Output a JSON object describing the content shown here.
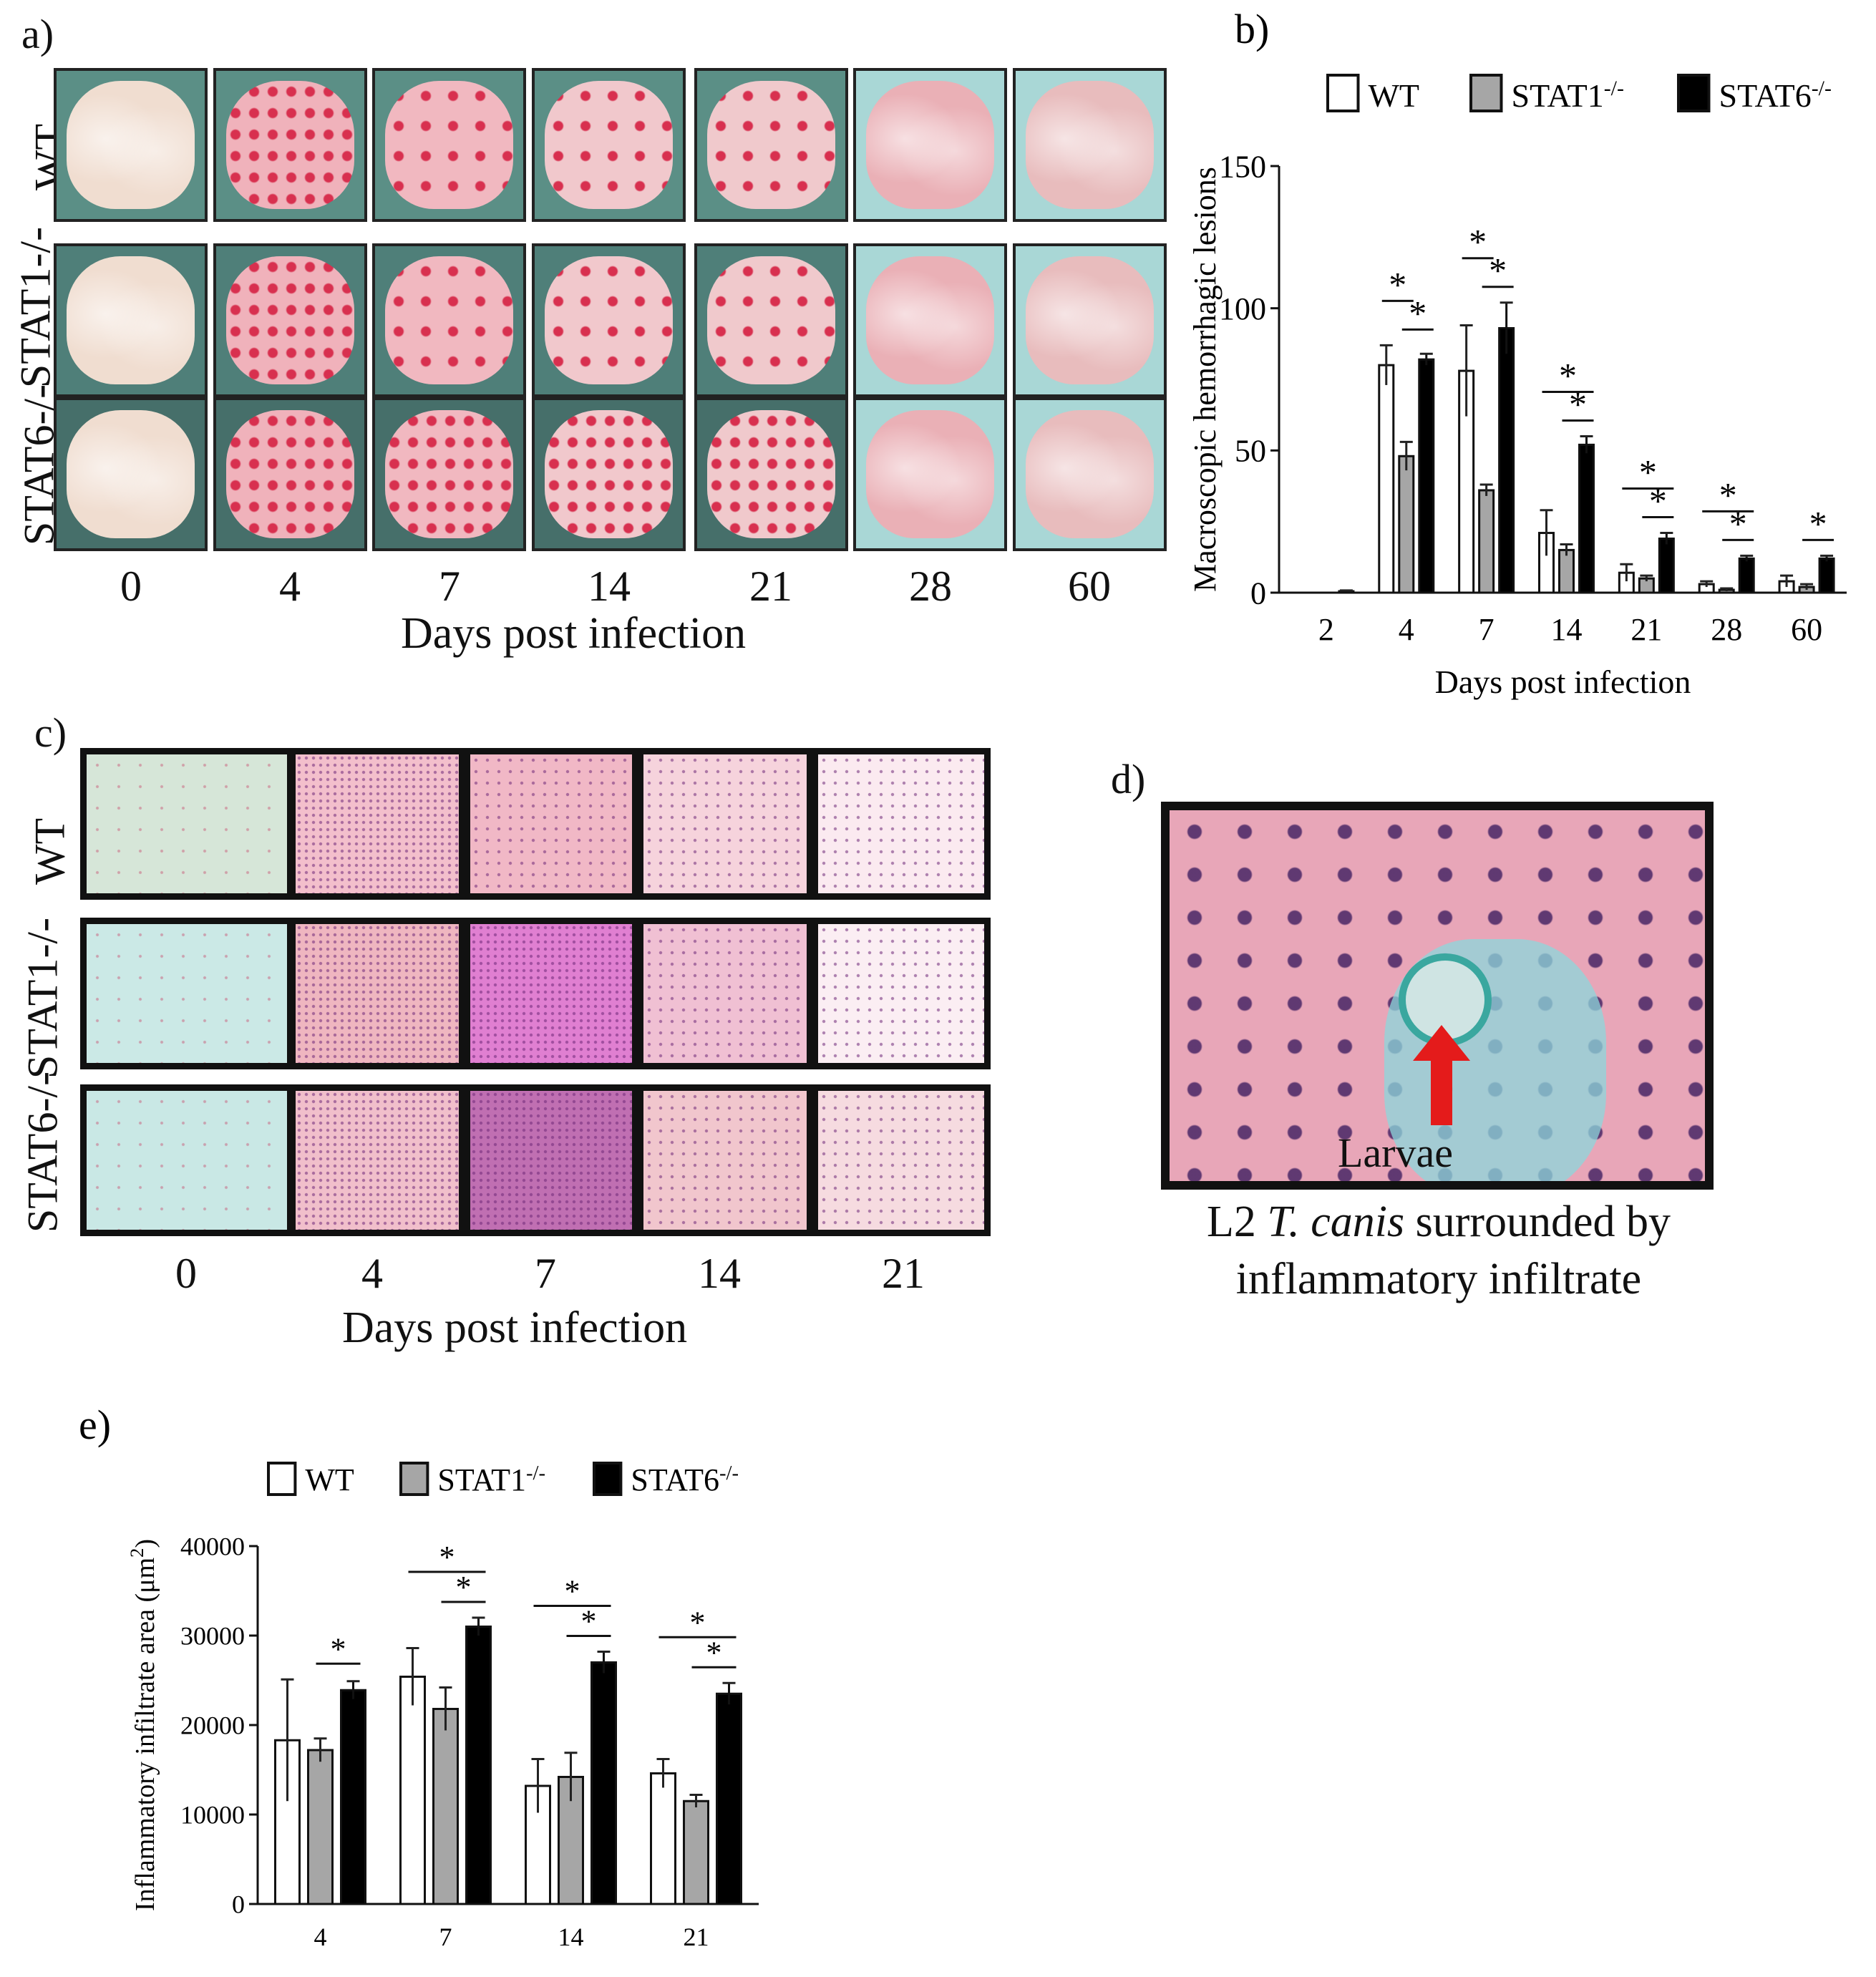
{
  "panel_a": {
    "label": "a)",
    "rows": [
      "WT",
      "STAT1-/-",
      "STAT6-/-"
    ],
    "days": [
      "0",
      "4",
      "7",
      "14",
      "21",
      "28",
      "60"
    ],
    "xlabel": "Days post infection"
  },
  "panel_c": {
    "label": "c)",
    "rows": [
      "WT",
      "STAT1-/-",
      "STAT6-/-"
    ],
    "days": [
      "0",
      "4",
      "7",
      "14",
      "21"
    ],
    "xlabel": "Days post infection"
  },
  "panel_d": {
    "label": "d)",
    "arrow_text": "Larvae",
    "caption_prefix": "L2 ",
    "caption_italic": "T. canis",
    "caption_suffix": " surrounded by",
    "caption_line2": "inflammatory infiltrate"
  },
  "chart_data": [
    {
      "panel": "b)",
      "type": "bar",
      "title": "",
      "xlabel": "Days post  infection",
      "ylabel": "Macroscopic hemorrhagic lesions",
      "ylim": [
        0,
        150
      ],
      "yticks": [
        0,
        50,
        100,
        150
      ],
      "categories": [
        "2",
        "4",
        "7",
        "14",
        "21",
        "28",
        "60"
      ],
      "series": [
        {
          "name": "WT",
          "sup": "",
          "color": "#ffffff",
          "values": [
            0,
            80,
            78,
            21,
            7,
            3,
            4
          ],
          "errors": [
            0,
            7,
            16,
            8,
            3,
            1,
            2
          ]
        },
        {
          "name": "STAT1",
          "sup": "-/-",
          "color": "#a6a6a6",
          "values": [
            0,
            48,
            36,
            15,
            5,
            1,
            2
          ],
          "errors": [
            0,
            5,
            2,
            2,
            1,
            0.5,
            1
          ]
        },
        {
          "name": "STAT6",
          "sup": "-/-",
          "color": "#000000",
          "values": [
            0.5,
            82,
            93,
            52,
            19,
            12,
            12
          ],
          "errors": [
            0.3,
            2,
            9,
            3,
            2,
            1,
            1
          ]
        }
      ],
      "significance": [
        {
          "cat": "4",
          "pairs": [
            [
              "WT",
              "STAT1"
            ],
            [
              "STAT1",
              "STAT6"
            ]
          ],
          "label": "*"
        },
        {
          "cat": "7",
          "pairs": [
            [
              "WT",
              "STAT1"
            ],
            [
              "STAT1",
              "STAT6"
            ]
          ],
          "label": "*"
        },
        {
          "cat": "14",
          "pairs": [
            [
              "WT",
              "STAT6"
            ],
            [
              "STAT1",
              "STAT6"
            ]
          ],
          "label": "*"
        },
        {
          "cat": "21",
          "pairs": [
            [
              "WT",
              "STAT6"
            ],
            [
              "STAT1",
              "STAT6"
            ]
          ],
          "label": "*"
        },
        {
          "cat": "28",
          "pairs": [
            [
              "WT",
              "STAT6"
            ],
            [
              "STAT1",
              "STAT6"
            ]
          ],
          "label": "*"
        },
        {
          "cat": "60",
          "pairs": [
            [
              "STAT1",
              "STAT6"
            ]
          ],
          "label": "*"
        }
      ]
    },
    {
      "panel": "e)",
      "type": "bar",
      "title": "",
      "xlabel": "",
      "ylabel": "Inflammatory infiltrate area (μm",
      "ylabel_sup": "2",
      "ylabel_end": ")",
      "ylim": [
        0,
        40000
      ],
      "yticks": [
        0,
        10000,
        20000,
        30000,
        40000
      ],
      "categories": [
        "4",
        "7",
        "14",
        "21"
      ],
      "series": [
        {
          "name": "WT",
          "sup": "",
          "color": "#ffffff",
          "values": [
            18300,
            25400,
            13200,
            14600
          ],
          "errors": [
            6800,
            3200,
            3000,
            1600
          ]
        },
        {
          "name": "STAT1",
          "sup": "-/-",
          "color": "#a6a6a6",
          "values": [
            17200,
            21800,
            14200,
            11500
          ],
          "errors": [
            1300,
            2400,
            2700,
            700
          ]
        },
        {
          "name": "STAT6",
          "sup": "-/-",
          "color": "#000000",
          "values": [
            23900,
            31000,
            27000,
            23500
          ],
          "errors": [
            1000,
            1000,
            1200,
            1200
          ]
        }
      ],
      "significance": [
        {
          "cat": "4",
          "pairs": [
            [
              "STAT1",
              "STAT6"
            ]
          ],
          "label": "*"
        },
        {
          "cat": "7",
          "pairs": [
            [
              "WT",
              "STAT6"
            ],
            [
              "STAT1",
              "STAT6"
            ]
          ],
          "label": "*"
        },
        {
          "cat": "14",
          "pairs": [
            [
              "WT",
              "STAT6"
            ],
            [
              "STAT1",
              "STAT6"
            ]
          ],
          "label": "*"
        },
        {
          "cat": "21",
          "pairs": [
            [
              "WT",
              "STAT6"
            ],
            [
              "STAT1",
              "STAT6"
            ]
          ],
          "label": "*"
        }
      ]
    }
  ]
}
